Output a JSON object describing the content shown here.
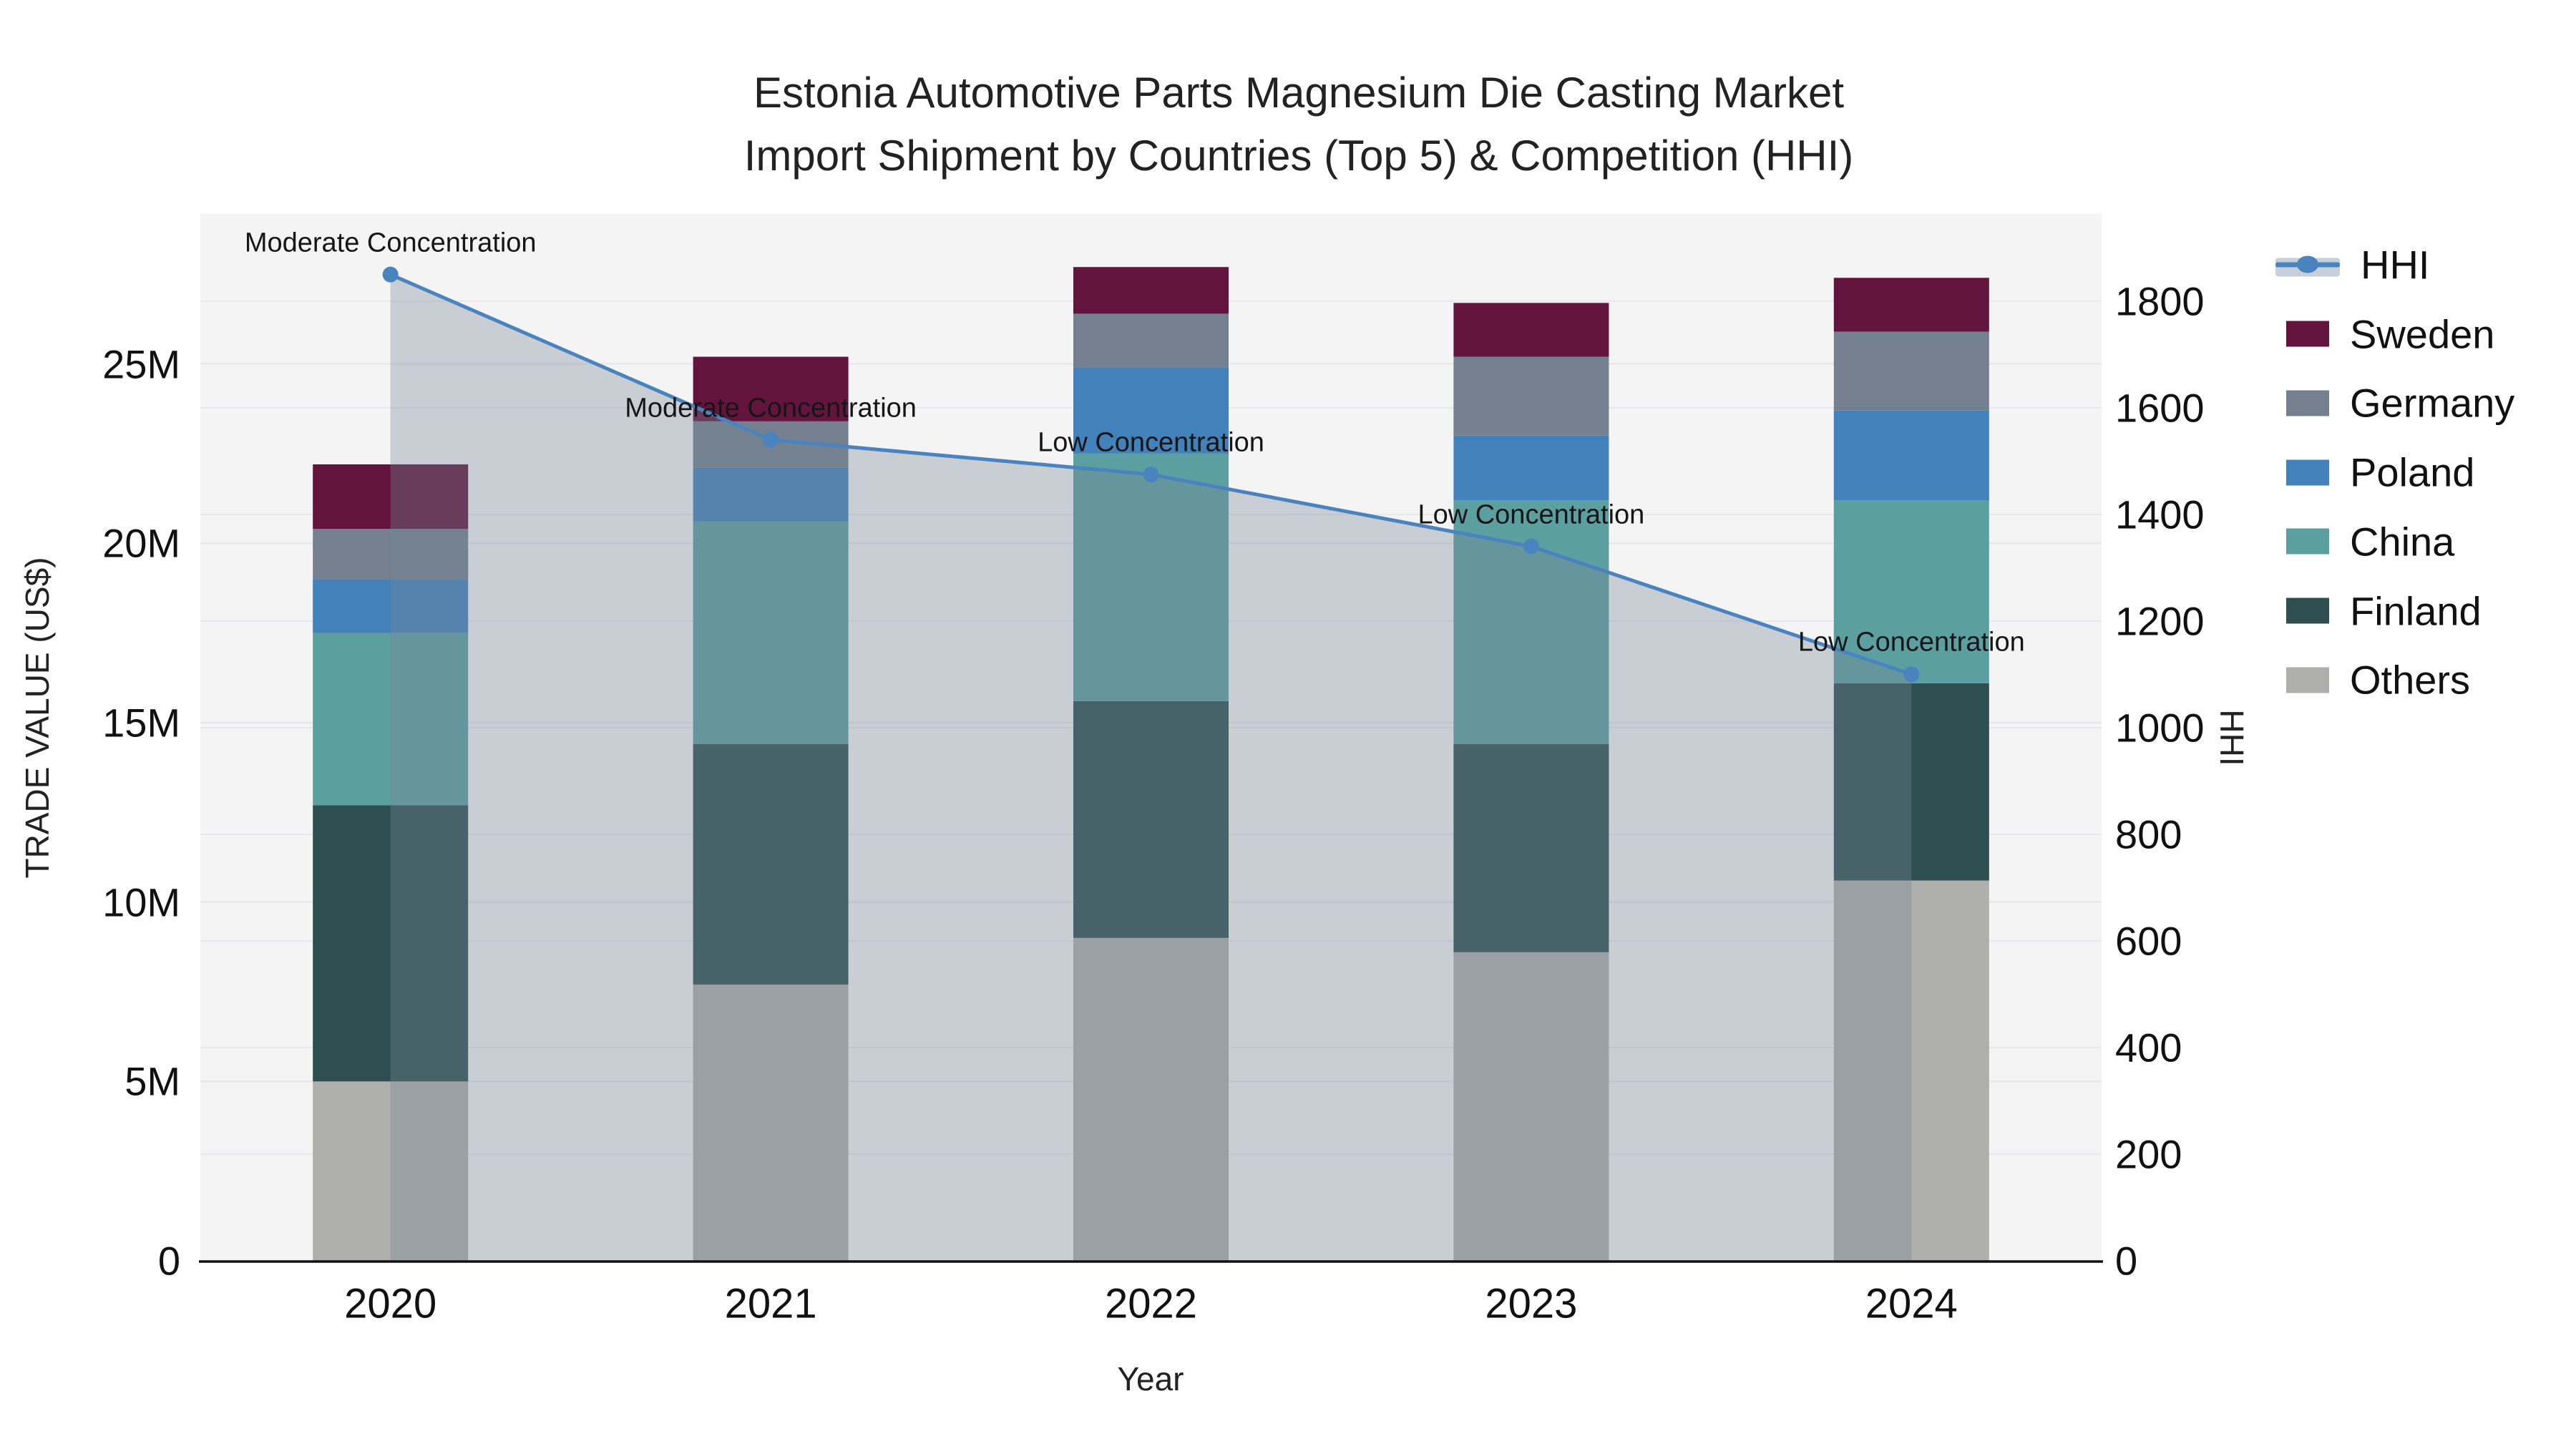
{
  "title": {
    "line1": "Estonia Automotive Parts Magnesium Die Casting Market",
    "line2": "Import Shipment by Countries (Top 5) & Competition (HHI)"
  },
  "chart_data": {
    "type": "bar",
    "subtype": "stacked-bars-with-line",
    "x_title": "Year",
    "categories": [
      "2020",
      "2021",
      "2022",
      "2023",
      "2024"
    ],
    "value_unit": "M US$",
    "series": [
      {
        "name": "Others",
        "color": "#aeaeac",
        "values": [
          5.0,
          7.7,
          9.0,
          8.6,
          10.6
        ]
      },
      {
        "name": "Finland",
        "color": "#2e4f50",
        "values": [
          7.7,
          6.7,
          6.6,
          5.8,
          5.5
        ]
      },
      {
        "name": "China",
        "color": "#5b9fa1",
        "values": [
          4.8,
          6.2,
          6.9,
          6.8,
          5.1
        ]
      },
      {
        "name": "Poland",
        "color": "#4281ba",
        "values": [
          1.5,
          1.5,
          2.4,
          1.8,
          2.5
        ]
      },
      {
        "name": "Germany",
        "color": "#748090",
        "values": [
          1.4,
          1.3,
          1.5,
          2.2,
          2.2
        ]
      },
      {
        "name": "Sweden",
        "color": "#63143c",
        "values": [
          1.8,
          1.8,
          1.3,
          1.5,
          1.5
        ]
      }
    ],
    "totals": [
      22.2,
      25.2,
      27.7,
      26.7,
      27.4
    ],
    "line": {
      "name": "HHI",
      "color": "#4a84bf",
      "fillcolor": "rgba(119,136,153,0.35)",
      "values": [
        1850,
        1540,
        1475,
        1340,
        1100
      ]
    },
    "annotations": [
      "Moderate Concentration",
      "Moderate Concentration",
      "Low Concentration",
      "Low Concentration",
      "Low Concentration"
    ],
    "y_left": {
      "title": "TRADE VALUE (US$)",
      "tick_labels": [
        "0",
        "5M",
        "10M",
        "15M",
        "20M",
        "25M"
      ],
      "tick_values": [
        0,
        5,
        10,
        15,
        20,
        25
      ],
      "range": [
        0,
        29.2
      ],
      "grid": true
    },
    "y_right": {
      "title": "HHI",
      "tick_values": [
        0,
        200,
        400,
        600,
        800,
        1000,
        1200,
        1400,
        1600,
        1800
      ],
      "range": [
        0,
        1965
      ],
      "grid": true
    },
    "legend_position": "top-right",
    "plot_bg": "#f4f4f5",
    "grid_color": "#e7e8ea",
    "axis_line_color": "#111111"
  }
}
